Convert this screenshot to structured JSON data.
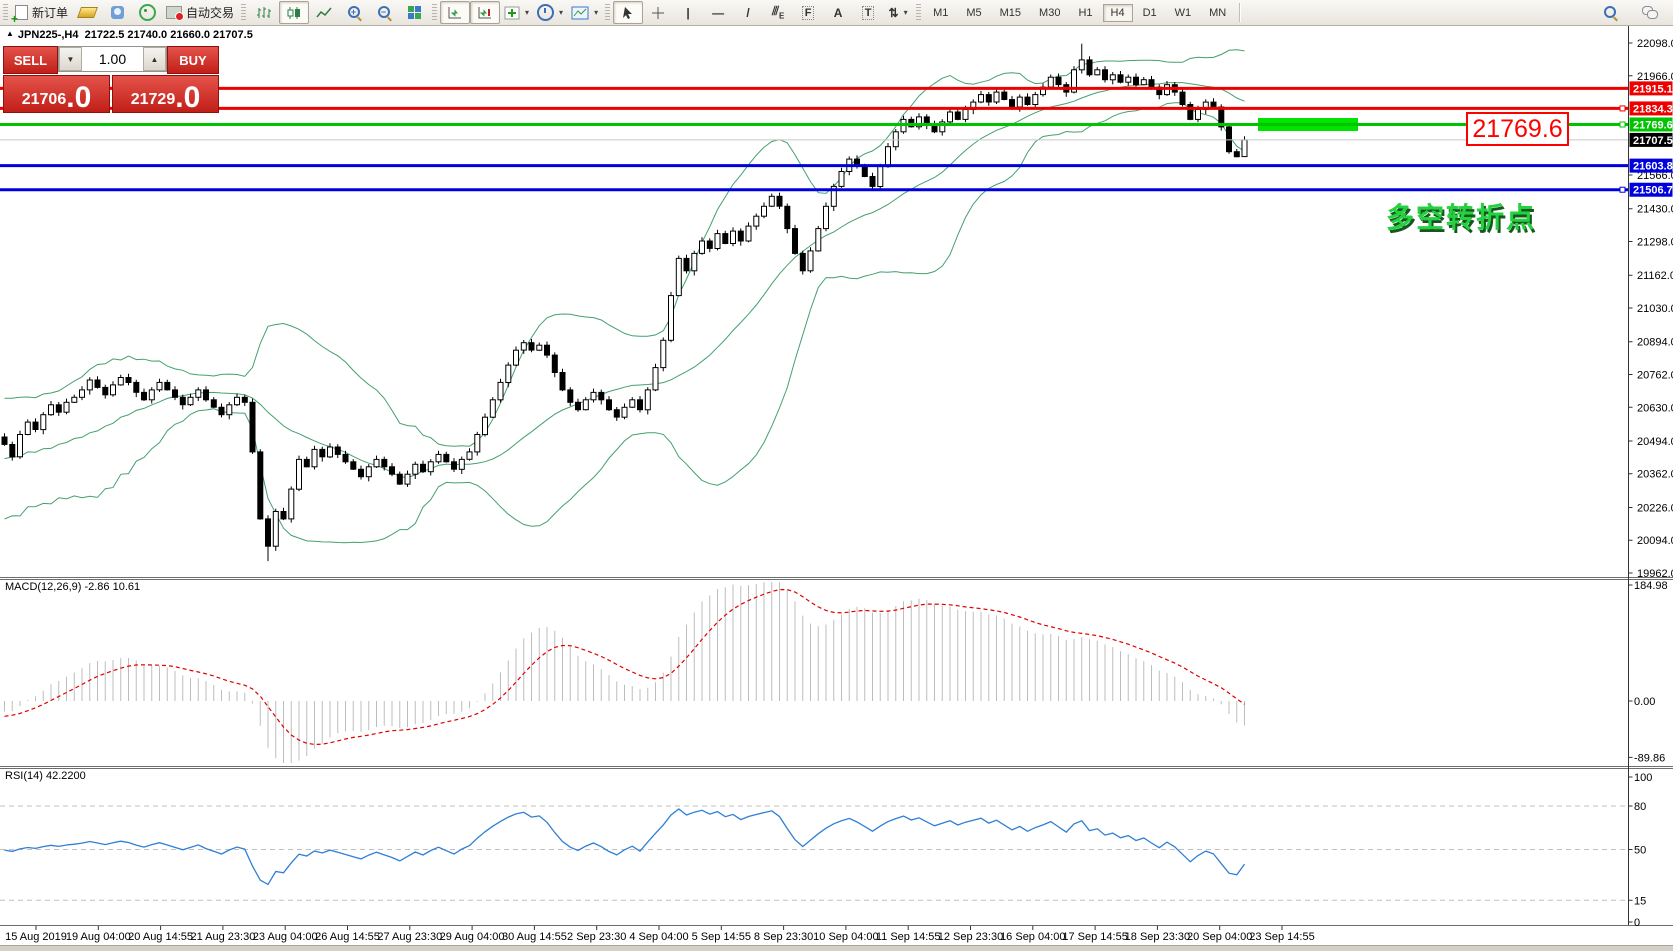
{
  "toolbar": {
    "new_order": "新订单",
    "auto_trading": "自动交易",
    "timeframes": [
      "M1",
      "M5",
      "M15",
      "M30",
      "H1",
      "H4",
      "D1",
      "W1",
      "MN"
    ],
    "active_timeframe": "H4",
    "letters": {
      "channel": "E",
      "fibo": "F",
      "text": "A",
      "label": "T"
    }
  },
  "chart_header": {
    "arrow": "▲",
    "symbol": "JPN225-,H4",
    "quote": "21722.5 21740.0 21660.0 21707.5"
  },
  "trade_panel": {
    "sell": "SELL",
    "buy": "BUY",
    "volume": "1.00",
    "down_arrow": "▼",
    "up_arrow": "▲",
    "sell_big": "21706",
    "sell_pips": ".0",
    "buy_big": "21729",
    "buy_pips": ".0"
  },
  "annotations": {
    "price_callout": "21769.6",
    "turning_point": "多空转折点"
  },
  "macd_pane": {
    "label": "MACD(12,26,9) -2.86 10.61",
    "ticks": [
      {
        "text": "184.98",
        "value": 184.98
      },
      {
        "text": "0.00",
        "value": 0
      },
      {
        "text": "-89.86",
        "value": -89.86
      }
    ]
  },
  "rsi_pane": {
    "label": "RSI(14) 42.2200",
    "ticks": [
      {
        "text": "100",
        "value": 100,
        "dashed": false
      },
      {
        "text": "80",
        "value": 80,
        "dashed": true
      },
      {
        "text": "50",
        "value": 50,
        "dashed": true
      },
      {
        "text": "15",
        "value": 15,
        "dashed": true
      },
      {
        "text": "0",
        "value": 0,
        "dashed": false
      }
    ]
  },
  "chart_data": {
    "type": "candlestick",
    "symbol": "JPN225-",
    "timeframe": "H4",
    "title_ohlc": {
      "open": 21722.5,
      "high": 21740.0,
      "low": 21660.0,
      "close": 21707.5
    },
    "ylim": [
      19962,
      22098
    ],
    "price_ticks": [
      {
        "text": "22098.0",
        "price": 22098
      },
      {
        "text": "21966.0",
        "price": 21966
      },
      {
        "text": "21566.0",
        "price": 21566
      },
      {
        "text": "21430.0",
        "price": 21430
      },
      {
        "text": "21298.0",
        "price": 21298
      },
      {
        "text": "21162.0",
        "price": 21162
      },
      {
        "text": "21030.0",
        "price": 21030
      },
      {
        "text": "20894.0",
        "price": 20894
      },
      {
        "text": "20762.0",
        "price": 20762
      },
      {
        "text": "20630.0",
        "price": 20630
      },
      {
        "text": "20494.0",
        "price": 20494
      },
      {
        "text": "20362.0",
        "price": 20362
      },
      {
        "text": "20226.0",
        "price": 20226
      },
      {
        "text": "20094.0",
        "price": 20094
      },
      {
        "text": "19962.0",
        "price": 19962
      }
    ],
    "horizontal_lines": [
      {
        "price": 21915.1,
        "label": "21915.1",
        "color": "#ee0000",
        "width": 3,
        "marker": false
      },
      {
        "price": 21834.3,
        "label": "21834.3",
        "color": "#ee0000",
        "width": 3,
        "marker": true
      },
      {
        "price": 21769.6,
        "label": "21769.6",
        "color": "#00c400",
        "width": 3,
        "marker": true
      },
      {
        "price": 21707.5,
        "label": "21707.5",
        "color": "#c8c8c8",
        "width": 1,
        "marker": false,
        "label_bg": "#000000"
      },
      {
        "price": 21603.8,
        "label": "21603.8",
        "color": "#0000dd",
        "width": 3,
        "marker": false
      },
      {
        "price": 21506.7,
        "label": "21506.7",
        "color": "#0000dd",
        "width": 3,
        "marker": true
      }
    ],
    "green_zone": {
      "price": 21769.6,
      "x_from": 1258,
      "x_to": 1358,
      "thickness": 13,
      "color": "#00e400"
    },
    "bollinger": {
      "period": 20,
      "deviation": 2,
      "color": "#44a06e"
    },
    "macd": {
      "fast": 12,
      "slow": 26,
      "signal_period": 9,
      "values": "-2.86 10.61",
      "hist_color": "#bdbdbd",
      "signal_color": "#e00000",
      "range": [
        -89.86,
        184.98
      ]
    },
    "rsi": {
      "period": 14,
      "value": 42.22,
      "color": "#2f7fd6",
      "levels": [
        80,
        50,
        15
      ]
    },
    "candle_up_color": "#ffffff",
    "candle_down_color": "#000000",
    "warmup_closes": [
      20550,
      20300,
      20480,
      20200,
      20560,
      20320,
      20620,
      20280,
      20500,
      20350,
      20600,
      20380,
      20560,
      20300,
      20480,
      20260,
      20540,
      20330,
      20500,
      20420
    ],
    "closes": [
      20480,
      20430,
      20520,
      20570,
      20540,
      20600,
      20640,
      20610,
      20650,
      20670,
      20700,
      20740,
      20710,
      20680,
      20720,
      20750,
      20730,
      20690,
      20660,
      20700,
      20730,
      20700,
      20670,
      20640,
      20670,
      20700,
      20660,
      20630,
      20600,
      20640,
      20670,
      20650,
      20450,
      20180,
      20070,
      20210,
      20180,
      20300,
      20420,
      20390,
      20460,
      20430,
      20470,
      20440,
      20410,
      20380,
      20350,
      20390,
      20420,
      20390,
      20360,
      20320,
      20360,
      20400,
      20370,
      20410,
      20440,
      20410,
      20380,
      20420,
      20450,
      20520,
      20590,
      20660,
      20730,
      20800,
      20860,
      20890,
      20860,
      20880,
      20840,
      20770,
      20700,
      20650,
      20620,
      20660,
      20690,
      20660,
      20620,
      20590,
      20630,
      20660,
      20620,
      20700,
      20790,
      20900,
      21080,
      21230,
      21180,
      21250,
      21300,
      21270,
      21330,
      21290,
      21340,
      21300,
      21360,
      21400,
      21440,
      21480,
      21440,
      21350,
      21250,
      21180,
      21260,
      21350,
      21440,
      21520,
      21580,
      21630,
      21600,
      21560,
      21520,
      21600,
      21680,
      21740,
      21790,
      21760,
      21800,
      21770,
      21740,
      21780,
      21820,
      21790,
      21830,
      21860,
      21890,
      21860,
      21900,
      21870,
      21840,
      21880,
      21850,
      21890,
      21920,
      21960,
      21930,
      21900,
      21990,
      22030,
      21970,
      21990,
      21950,
      21970,
      21940,
      21960,
      21930,
      21950,
      21920,
      21890,
      21930,
      21900,
      21850,
      21790,
      21830,
      21860,
      21840,
      21760,
      21660,
      21640,
      21707.5
    ],
    "wick_overrides": {
      "34": {
        "low": 20010
      },
      "139": {
        "high": 22095
      },
      "160": {
        "low": 21665
      }
    },
    "time_labels": [
      "15 Aug 2019",
      "19 Aug 04:00",
      "20 Aug 14:55",
      "21 Aug 23:30",
      "23 Aug 04:00",
      "26 Aug 14:55",
      "27 Aug 23:30",
      "29 Aug 04:00",
      "30 Aug 14:55",
      "2 Sep 23:30",
      "4 Sep 04:00",
      "5 Sep 14:55",
      "8 Sep 23:30",
      "10 Sep 04:00",
      "11 Sep 14:55",
      "12 Sep 23:30",
      "16 Sep 04:00",
      "17 Sep 14:55",
      "18 Sep 23:30",
      "20 Sep 04:00",
      "23 Sep 14:55"
    ]
  }
}
